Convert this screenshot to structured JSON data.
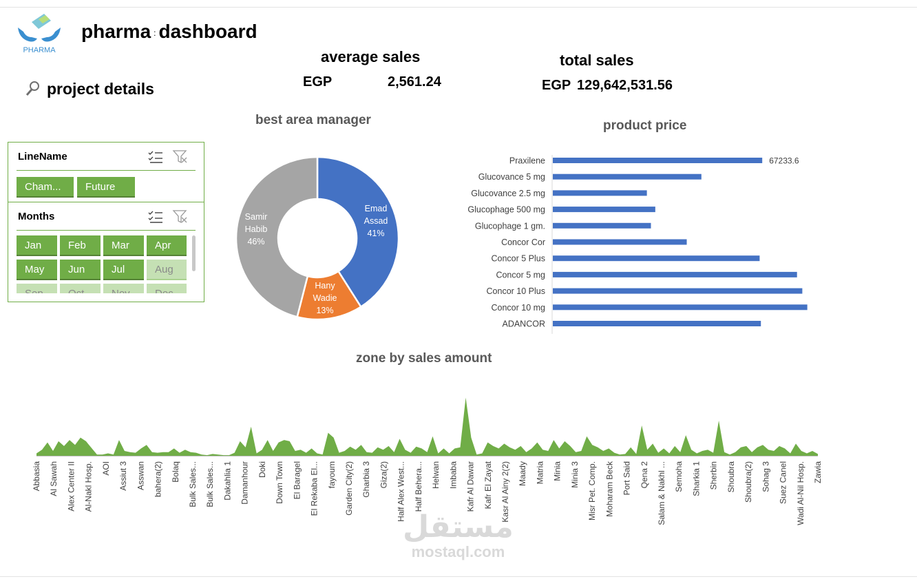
{
  "header": {
    "title_left": "pharma",
    "title_sep": ":",
    "title_right": "dashboard",
    "logo_text": "PHARMA",
    "project_details": "project details"
  },
  "kpis": {
    "average_sales": {
      "label": "average sales",
      "currency": "EGP",
      "value": "2,561.24"
    },
    "total_sales": {
      "label": "total sales",
      "currency": "EGP",
      "value": "129,642,531.56"
    }
  },
  "slicers": {
    "line_name": {
      "header": "LineName",
      "items": [
        {
          "label": "Cham...",
          "selected": true
        },
        {
          "label": "Future",
          "selected": true
        }
      ]
    },
    "months": {
      "header": "Months",
      "items": [
        {
          "label": "Jan",
          "selected": true
        },
        {
          "label": "Feb",
          "selected": true
        },
        {
          "label": "Mar",
          "selected": true
        },
        {
          "label": "Apr",
          "selected": true
        },
        {
          "label": "May",
          "selected": true
        },
        {
          "label": "Jun",
          "selected": true
        },
        {
          "label": "Jul",
          "selected": true
        },
        {
          "label": "Aug",
          "selected": false
        },
        {
          "label": "Sep",
          "selected": false
        },
        {
          "label": "Oct",
          "selected": false
        },
        {
          "label": "Nov",
          "selected": false
        },
        {
          "label": "Dec",
          "selected": false
        }
      ]
    }
  },
  "colors": {
    "accent_green": "#70ad47",
    "donut_blue": "#4472c4",
    "donut_orange": "#ed7d31",
    "donut_gray": "#a5a5a5",
    "bar_blue": "#4472c4"
  },
  "watermark": {
    "arabic": "مستقل",
    "latin": "mostaql.com"
  },
  "chart_data": [
    {
      "type": "pie",
      "title": "best area manager",
      "donut": true,
      "slices": [
        {
          "label": "Emad Assad",
          "label_lines": [
            "Emad",
            "Assad"
          ],
          "percent": "41%",
          "value": 41
        },
        {
          "label": "Hany Wadie",
          "label_lines": [
            "Hany",
            "Wadie"
          ],
          "percent": "13%",
          "value": 13
        },
        {
          "label": "Samir Habib",
          "label_lines": [
            "Samir",
            "Habib"
          ],
          "percent": "46%",
          "value": 46
        }
      ]
    },
    {
      "type": "bar",
      "orientation": "horizontal",
      "title": "product  price",
      "categories": [
        "Praxilene",
        "Glucovance 5 mg",
        "Glucovance 2.5 mg",
        "Glucophage 500 mg",
        "Glucophage 1 gm.",
        "Concor Cor",
        "Concor 5 Plus",
        "Concor 5 mg",
        "Concor 10 Plus",
        "Concor 10 mg",
        "ADANCOR"
      ],
      "values": [
        67233.6,
        47700,
        30200,
        32900,
        31500,
        43000,
        66400,
        78400,
        80100,
        81700,
        66800
      ],
      "data_labels": {
        "Praxilene": "67233.6"
      }
    },
    {
      "type": "area",
      "title": "zone by sales amount",
      "tick_labels": [
        "Abbasia",
        "Al Sawah",
        "Alex Center II",
        "Al-Nakl Hosp.",
        "AOI",
        "Assiut 3",
        "Asswan",
        "bahera(2)",
        "Bolaq",
        "Bulk Sales...",
        "Bulk Sales...",
        "Dakahlia 1",
        "Damanhour",
        "Doki",
        "Down Town",
        "El Baragel",
        "El Rekaba El...",
        "fayoum",
        "Garden City(2)",
        "Gharbia 3",
        "Giza(2)",
        "Half Alex West...",
        "Half Behera...",
        "Helwan",
        "Imbaba",
        "Kafr Al Dawar",
        "Kafr El Zayat",
        "Kasr Al Ainy 2(2)",
        "Maady",
        "Matria",
        "Minia",
        "Minia 3",
        "Misr Pet. Comp.",
        "Moharam Beck",
        "Port Said",
        "Qena 2",
        "Salam & Nakhl ...",
        "Semoha",
        "Sharkia 1",
        "Sherbin",
        "Shoubra",
        "Shoubra(2)",
        "Sohag 3",
        "Suez Canel",
        "Wadi Al-Nil Hosp.",
        "Zawia"
      ],
      "values": [
        4,
        10,
        22,
        8,
        24,
        16,
        26,
        18,
        30,
        24,
        13,
        2,
        2,
        4,
        2,
        26,
        8,
        6,
        5,
        12,
        18,
        6,
        5,
        6,
        6,
        12,
        5,
        10,
        6,
        5,
        2,
        1,
        3,
        2,
        1,
        1,
        5,
        24,
        14,
        48,
        4,
        10,
        26,
        8,
        22,
        26,
        24,
        8,
        10,
        5,
        12,
        4,
        2,
        38,
        30,
        5,
        8,
        15,
        10,
        18,
        6,
        5,
        14,
        10,
        16,
        6,
        28,
        10,
        5,
        15,
        12,
        6,
        32,
        4,
        12,
        4,
        12,
        14,
        96,
        30,
        2,
        4,
        22,
        16,
        12,
        20,
        14,
        10,
        16,
        6,
        12,
        22,
        10,
        8,
        26,
        12,
        24,
        16,
        6,
        8,
        32,
        18,
        14,
        8,
        12,
        5,
        2,
        3,
        14,
        3,
        50,
        10,
        20,
        5,
        12,
        4,
        16,
        6,
        34,
        10,
        4,
        8,
        10,
        5,
        58,
        6,
        2,
        6,
        14,
        16,
        6,
        14,
        18,
        10,
        8,
        16,
        12,
        4,
        20,
        8,
        4,
        8,
        3
      ]
    }
  ]
}
